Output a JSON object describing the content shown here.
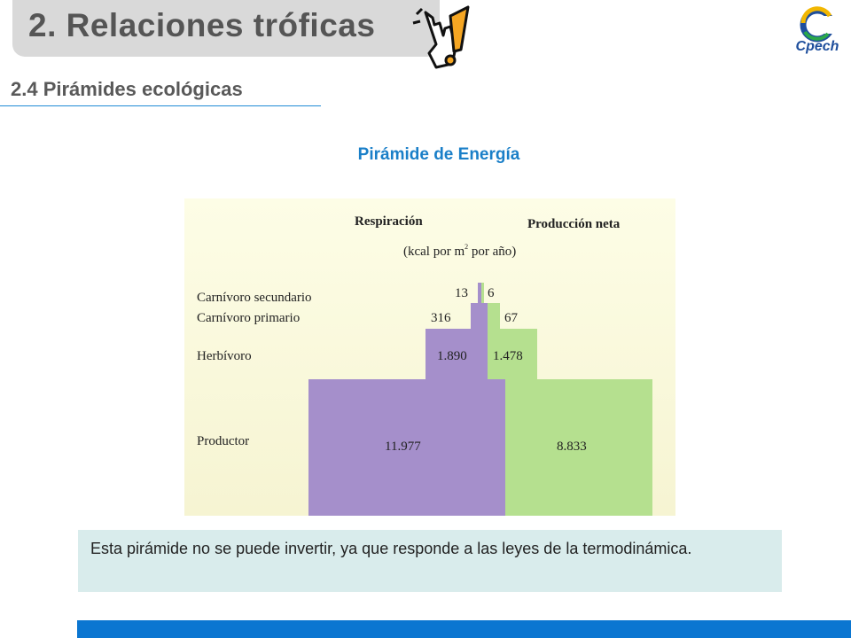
{
  "header": {
    "title": "2. Relaciones tróficas",
    "subtitle": "2.4 Pirámides ecológicas",
    "logo_text": "Cpech"
  },
  "diagram": {
    "title": "Pirámide de Energía",
    "left_heading": "Respiración",
    "right_heading": "Producción neta",
    "units": "(kcal por m",
    "units_sup": "2",
    "units_tail": " por año)",
    "levels": [
      {
        "name": "Carnívoro secundario",
        "respiration": "13",
        "net": "6"
      },
      {
        "name": "Carnívoro primario",
        "respiration": "316",
        "net": "67"
      },
      {
        "name": "Herbívoro",
        "respiration": "1.890",
        "net": "1.478"
      },
      {
        "name": "Productor",
        "respiration": "11.977",
        "net": "8.833"
      }
    ],
    "colors": {
      "respiration": "#a58fcb",
      "net": "#b5e08f"
    }
  },
  "note": {
    "text": "Esta pirámide no se puede invertir, ya que responde  a las leyes de la termodinámica."
  },
  "theme": {
    "accent": "#0b76d1",
    "title_tab": "#d9d9d9",
    "note_bg": "#d9ecec"
  }
}
